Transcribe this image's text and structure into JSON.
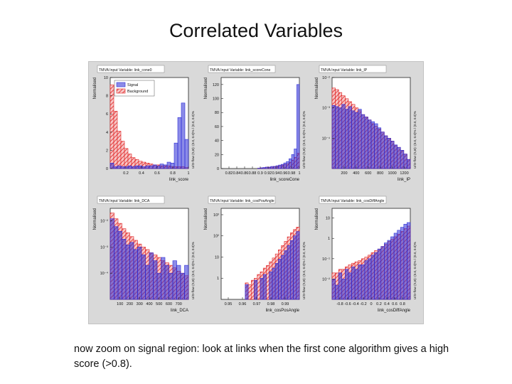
{
  "slide": {
    "title": "Correlated Variables",
    "caption": "now zoom on signal region: look at links when the first cone algorithm gives a high score (>0.8)."
  },
  "colors": {
    "signal": "#2b2bd6",
    "background": "#e02020",
    "panel_bg": "#ffffff",
    "frame_bg": "#d9d9d9"
  },
  "legend": {
    "signal_label": "Signal",
    "background_label": "Background"
  },
  "overflow_label": "U/O-flow (S,B): (0.0, 0.0)% / (0.0, 0.0)%",
  "chart_data": [
    {
      "type": "bar",
      "title": "TMVA Input Variable: link_cone0",
      "xlabel": "link_score",
      "ylabel": "Normalised",
      "xlim": [
        0,
        1
      ],
      "ylim": [
        0,
        10
      ],
      "yscale": "linear",
      "x_ticks": [
        0.2,
        0.4,
        0.6,
        0.8,
        1
      ],
      "y_ticks": [
        0,
        2,
        4,
        6,
        8,
        10
      ],
      "x_tick_labels": [
        "0.2",
        "0.4",
        "0.6",
        "0.8",
        "1"
      ],
      "y_tick_labels": [
        "0",
        "2",
        "4",
        "6",
        "8",
        "10"
      ],
      "series": [
        {
          "name": "Signal",
          "values": [
            0.6,
            0.2,
            0.3,
            0.2,
            0.2,
            0.3,
            0.2,
            0.3,
            0.3,
            0.2,
            0.3,
            0.3,
            0.4,
            0.3,
            0.5,
            0.4,
            0.7,
            0.6,
            2.8,
            5.6,
            7.2,
            3.2
          ]
        },
        {
          "name": "Background",
          "values": [
            9.2,
            6.3,
            4.1,
            3.0,
            2.2,
            1.6,
            1.2,
            1.0,
            0.8,
            0.7,
            0.6,
            0.5,
            0.4,
            0.4,
            0.3,
            0.3,
            0.3,
            0.2,
            0.2,
            0.2,
            0.2,
            0.1
          ]
        }
      ]
    },
    {
      "type": "bar",
      "title": "TMVA Input Variable: link_scoreCone",
      "xlabel": "link_scoreCone",
      "ylabel": "Normalised",
      "xlim": [
        0.8,
        1.0
      ],
      "ylim": [
        0,
        130
      ],
      "yscale": "linear",
      "x_ticks": [
        0.82,
        0.84,
        0.86,
        0.88,
        0.9,
        0.92,
        0.94,
        0.96,
        0.98,
        1
      ],
      "y_ticks": [
        0,
        20,
        40,
        60,
        80,
        100,
        120
      ],
      "x_tick_labels": [
        "0.82",
        "0.84",
        "0.86",
        "0.88",
        "0.9",
        "0.92",
        "0.94",
        "0.96",
        "0.98",
        "1"
      ],
      "y_tick_labels": [
        "0",
        "20",
        "40",
        "60",
        "80",
        "100",
        "120"
      ],
      "series": [
        {
          "name": "Signal",
          "values": [
            0,
            0,
            0,
            0,
            0,
            0,
            0,
            0,
            0,
            0,
            0,
            0,
            0,
            0,
            0.5,
            1,
            1.5,
            2,
            2,
            3,
            3,
            4,
            5,
            6,
            8,
            10,
            14,
            20,
            28,
            120
          ]
        },
        {
          "name": "Background",
          "values": [
            0,
            0,
            0,
            0,
            0,
            0,
            0,
            0,
            0,
            0,
            0,
            0,
            0,
            0,
            0.5,
            1,
            1,
            2,
            2,
            2,
            3,
            3,
            4,
            5,
            6,
            7,
            9,
            12,
            16,
            22
          ]
        }
      ]
    },
    {
      "type": "bar",
      "title": "TMVA Input Variable: link_IP",
      "xlabel": "link_IP",
      "ylabel": "Normalised",
      "xlim": [
        0,
        1300
      ],
      "ylim": [
        1e-05,
        0.01
      ],
      "yscale": "log",
      "x_ticks": [
        200,
        400,
        600,
        800,
        1000,
        1200
      ],
      "y_ticks": [
        0.0001,
        0.001,
        0.01
      ],
      "x_tick_labels": [
        "200",
        "400",
        "600",
        "800",
        "1000",
        "1200"
      ],
      "y_tick_labels": [
        "10⁻⁴",
        "10⁻³",
        "10⁻²"
      ],
      "series": [
        {
          "name": "Signal",
          "values": [
            0.0012,
            0.0011,
            0.001,
            0.0013,
            0.0009,
            0.0011,
            0.0008,
            0.0007,
            0.0009,
            0.0006,
            0.0005,
            0.0004,
            0.00035,
            0.0003,
            0.00022,
            0.00016,
            0.00012,
            0.0001,
            8e-05,
            6e-05,
            5e-05,
            4e-05,
            3e-05,
            2e-05
          ]
        },
        {
          "name": "Background",
          "values": [
            0.0045,
            0.004,
            0.0032,
            0.0025,
            0.002,
            0.0016,
            0.0013,
            0.001,
            0.0008,
            0.0006,
            0.0005,
            0.0004,
            0.0003,
            0.00025,
            0.0002,
            0.00016,
            0.00012,
            0.0001,
            8e-05,
            6e-05,
            5e-05,
            4e-05,
            3e-05,
            2e-05
          ]
        }
      ]
    },
    {
      "type": "bar",
      "title": "TMVA Input Variable: link_DCA",
      "xlabel": "link_DCA",
      "ylabel": "Normalised",
      "xlim": [
        0,
        800
      ],
      "ylim": [
        1e-05,
        0.03
      ],
      "yscale": "log",
      "x_ticks": [
        100,
        200,
        300,
        400,
        500,
        600,
        700
      ],
      "y_ticks": [
        0.0001,
        0.001,
        0.01
      ],
      "x_tick_labels": [
        "100",
        "200",
        "300",
        "400",
        "500",
        "600",
        "700"
      ],
      "y_tick_labels": [
        "10⁻⁴",
        "10⁻³",
        "10⁻²"
      ],
      "series": [
        {
          "name": "Signal",
          "values": [
            0.012,
            0.006,
            0.004,
            0.002,
            0.0012,
            0.0015,
            0.0008,
            0.001,
            0.0005,
            0.0002,
            0.0006,
            0.0003,
            0.0001,
            0.0004,
            0.0002,
            0.0001,
            0.0003,
            0.0002,
            0.0001,
            0.0002
          ]
        },
        {
          "name": "Background",
          "values": [
            0.02,
            0.012,
            0.008,
            0.005,
            0.0035,
            0.0025,
            0.0018,
            0.0013,
            0.001,
            0.0008,
            0.0006,
            0.0005,
            0.0004,
            0.0003,
            0.00025,
            0.0002,
            0.00016,
            0.00012,
            0.0001,
            8e-05
          ]
        }
      ]
    },
    {
      "type": "bar",
      "title": "TMVA Input Variable: link_cosPosAngle",
      "xlabel": "link_cosPosAngle",
      "ylabel": "Normalised",
      "xlim": [
        0.945,
        1.0
      ],
      "ylim": [
        0.1,
        2000
      ],
      "yscale": "log",
      "x_ticks": [
        0.95,
        0.96,
        0.97,
        0.98,
        0.99
      ],
      "y_ticks": [
        1,
        10,
        100,
        1000
      ],
      "x_tick_labels": [
        "0.95",
        "0.96",
        "0.97",
        "0.98",
        "0.99"
      ],
      "y_tick_labels": [
        "1",
        "10",
        "10²",
        "10³"
      ],
      "series": [
        {
          "name": "Signal",
          "values": [
            0,
            0,
            0,
            0,
            0,
            0,
            0,
            0,
            0.5,
            0,
            0,
            0.8,
            0,
            1,
            1.5,
            0,
            2,
            3,
            5,
            8,
            12,
            20,
            35,
            60,
            100,
            160
          ]
        },
        {
          "name": "Background",
          "values": [
            0,
            0,
            0,
            0,
            0,
            0,
            0,
            0,
            0.6,
            0.5,
            0.8,
            1,
            1.5,
            2,
            3,
            4,
            6,
            9,
            14,
            22,
            35,
            55,
            90,
            140,
            200,
            260
          ]
        }
      ]
    },
    {
      "type": "bar",
      "title": "TMVA Input Variable: link_cosDiffAngle",
      "xlabel": "link_cosDiffAngle",
      "ylabel": "Normalised",
      "xlim": [
        -1,
        1
      ],
      "ylim": [
        0.001,
        30
      ],
      "yscale": "log",
      "x_ticks": [
        -0.8,
        -0.6,
        -0.4,
        -0.2,
        0,
        0.2,
        0.4,
        0.6,
        0.8
      ],
      "y_ticks": [
        0.01,
        0.1,
        1,
        10
      ],
      "x_tick_labels": [
        "-0.8",
        "-0.6",
        "-0.4",
        "-0.2",
        "0",
        "0.2",
        "0.4",
        "0.6",
        "0.8"
      ],
      "y_tick_labels": [
        "10⁻²",
        "10⁻¹",
        "1",
        "10"
      ],
      "series": [
        {
          "name": "Signal",
          "values": [
            0.01,
            0.005,
            0.02,
            0.01,
            0.03,
            0.02,
            0.04,
            0.03,
            0.05,
            0.05,
            0.08,
            0.1,
            0.15,
            0.2,
            0.3,
            0.4,
            0.6,
            0.8,
            1.2,
            1.8,
            2.5,
            3.5,
            5,
            6
          ]
        },
        {
          "name": "Background",
          "values": [
            0.02,
            0.02,
            0.03,
            0.03,
            0.04,
            0.05,
            0.06,
            0.07,
            0.08,
            0.1,
            0.12,
            0.15,
            0.2,
            0.25,
            0.3,
            0.4,
            0.5,
            0.7,
            0.9,
            1.2,
            1.6,
            2.2,
            3,
            4
          ]
        }
      ]
    }
  ]
}
